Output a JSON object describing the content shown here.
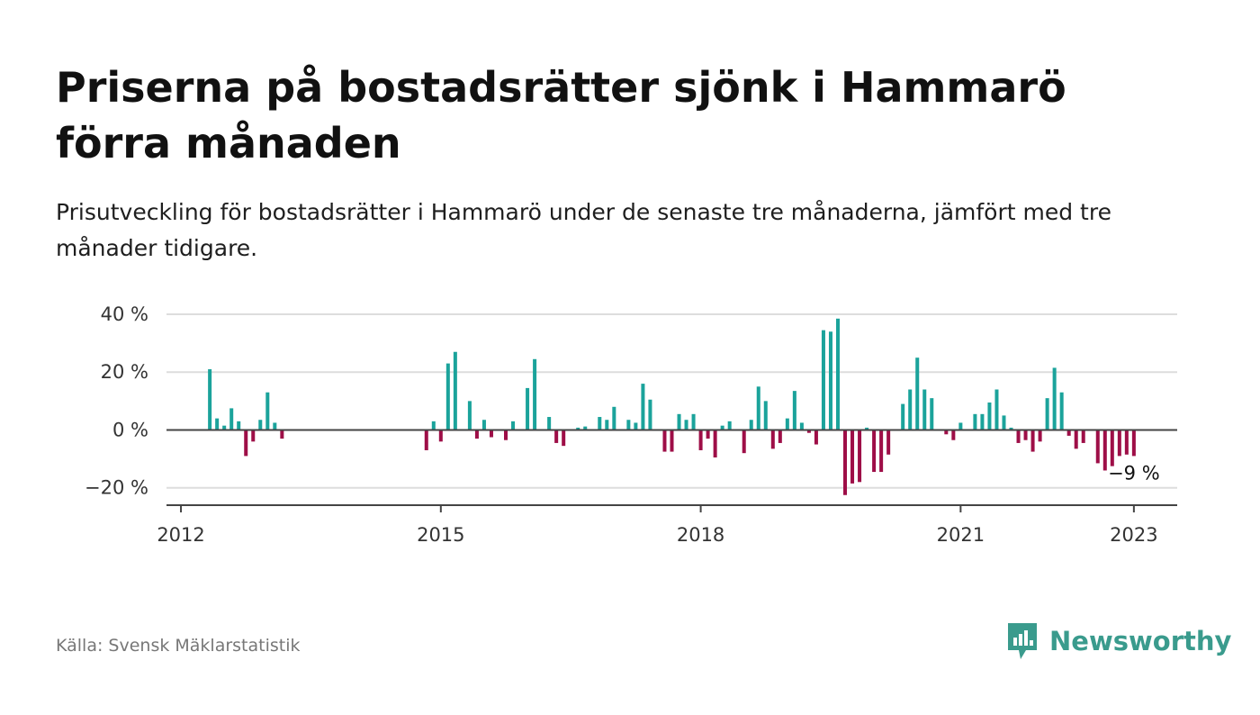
{
  "title": "Priserna på bostadsrätter sjönk i Hammarö förra månaden",
  "subtitle": "Prisutveckling för bostadsrätter i Hammarö under de senaste tre månaderna, jämfört med tre månader tidigare.",
  "source": "Källa: Svensk Mäklarstatistik",
  "brand": "Newsworthy",
  "colors": {
    "positive": "#1ba39b",
    "negative": "#9e0e47",
    "grid": "#dddddd",
    "axis": "#444444",
    "brand": "#3a9b8d"
  },
  "chart_data": {
    "type": "bar",
    "title": "Priserna på bostadsrätter sjönk i Hammarö förra månaden",
    "subtitle": "Prisutveckling för bostadsrätter i Hammarö under de senaste tre månaderna, jämfört med tre månader tidigare.",
    "xlabel": "",
    "ylabel": "",
    "unit": "%",
    "x_ticks": [
      {
        "label": "2012",
        "x": "2012-01"
      },
      {
        "label": "2015",
        "x": "2015-01"
      },
      {
        "label": "2018",
        "x": "2018-01"
      },
      {
        "label": "2021",
        "x": "2021-01"
      },
      {
        "label": "2023",
        "x": "2023-01"
      }
    ],
    "y_ticks": [
      {
        "label": "40 %",
        "value": 40
      },
      {
        "label": "20 %",
        "value": 20
      },
      {
        "label": "0 %",
        "value": 0
      },
      {
        "label": "−20 %",
        "value": -20
      }
    ],
    "xlim": [
      "2011-11",
      "2023-07"
    ],
    "ylim": [
      -26,
      40
    ],
    "grid": true,
    "annotation": {
      "label": "−9 %",
      "x": "2023-01",
      "value": -9
    },
    "points": [
      {
        "x": "2012-05",
        "value": 21
      },
      {
        "x": "2012-06",
        "value": 4
      },
      {
        "x": "2012-07",
        "value": 1.5
      },
      {
        "x": "2012-08",
        "value": 7.5
      },
      {
        "x": "2012-09",
        "value": 3
      },
      {
        "x": "2012-10",
        "value": -9
      },
      {
        "x": "2012-11",
        "value": -4
      },
      {
        "x": "2012-12",
        "value": 3.5
      },
      {
        "x": "2013-01",
        "value": 13
      },
      {
        "x": "2013-02",
        "value": 2.5
      },
      {
        "x": "2013-03",
        "value": -3
      },
      {
        "x": "2014-11",
        "value": -7
      },
      {
        "x": "2014-12",
        "value": 3
      },
      {
        "x": "2015-01",
        "value": -4
      },
      {
        "x": "2015-02",
        "value": 23
      },
      {
        "x": "2015-03",
        "value": 27
      },
      {
        "x": "2015-05",
        "value": 10
      },
      {
        "x": "2015-06",
        "value": -3
      },
      {
        "x": "2015-07",
        "value": 3.5
      },
      {
        "x": "2015-08",
        "value": -2.5
      },
      {
        "x": "2015-10",
        "value": -3.5
      },
      {
        "x": "2015-11",
        "value": 3
      },
      {
        "x": "2016-01",
        "value": 14.5
      },
      {
        "x": "2016-02",
        "value": 24.5
      },
      {
        "x": "2016-04",
        "value": 4.5
      },
      {
        "x": "2016-05",
        "value": -4.5
      },
      {
        "x": "2016-06",
        "value": -5.5
      },
      {
        "x": "2016-08",
        "value": 0.8
      },
      {
        "x": "2016-09",
        "value": 1.2
      },
      {
        "x": "2016-11",
        "value": 4.5
      },
      {
        "x": "2016-12",
        "value": 3.5
      },
      {
        "x": "2017-01",
        "value": 8
      },
      {
        "x": "2017-03",
        "value": 3.5
      },
      {
        "x": "2017-04",
        "value": 2.5
      },
      {
        "x": "2017-05",
        "value": 16
      },
      {
        "x": "2017-06",
        "value": 10.5
      },
      {
        "x": "2017-08",
        "value": -7.5
      },
      {
        "x": "2017-09",
        "value": -7.5
      },
      {
        "x": "2017-10",
        "value": 5.5
      },
      {
        "x": "2017-11",
        "value": 3.5
      },
      {
        "x": "2017-12",
        "value": 5.5
      },
      {
        "x": "2018-01",
        "value": -7
      },
      {
        "x": "2018-02",
        "value": -3
      },
      {
        "x": "2018-03",
        "value": -9.5
      },
      {
        "x": "2018-04",
        "value": 1.5
      },
      {
        "x": "2018-05",
        "value": 3
      },
      {
        "x": "2018-07",
        "value": -8
      },
      {
        "x": "2018-08",
        "value": 3.5
      },
      {
        "x": "2018-09",
        "value": 15
      },
      {
        "x": "2018-10",
        "value": 10
      },
      {
        "x": "2018-11",
        "value": -6.5
      },
      {
        "x": "2018-12",
        "value": -4.5
      },
      {
        "x": "2019-01",
        "value": 4
      },
      {
        "x": "2019-02",
        "value": 13.5
      },
      {
        "x": "2019-03",
        "value": 2.5
      },
      {
        "x": "2019-04",
        "value": -1
      },
      {
        "x": "2019-05",
        "value": -5
      },
      {
        "x": "2019-06",
        "value": 34.5
      },
      {
        "x": "2019-07",
        "value": 34
      },
      {
        "x": "2019-08",
        "value": 38.5
      },
      {
        "x": "2019-09",
        "value": -22.5
      },
      {
        "x": "2019-10",
        "value": -18.5
      },
      {
        "x": "2019-11",
        "value": -18
      },
      {
        "x": "2019-12",
        "value": 0.8
      },
      {
        "x": "2020-01",
        "value": -14.5
      },
      {
        "x": "2020-02",
        "value": -14.5
      },
      {
        "x": "2020-03",
        "value": -8.5
      },
      {
        "x": "2020-05",
        "value": 9
      },
      {
        "x": "2020-06",
        "value": 14
      },
      {
        "x": "2020-07",
        "value": 25
      },
      {
        "x": "2020-08",
        "value": 14
      },
      {
        "x": "2020-09",
        "value": 11
      },
      {
        "x": "2020-11",
        "value": -1.5
      },
      {
        "x": "2020-12",
        "value": -3.5
      },
      {
        "x": "2021-01",
        "value": 2.5
      },
      {
        "x": "2021-03",
        "value": 5.5
      },
      {
        "x": "2021-04",
        "value": 5.5
      },
      {
        "x": "2021-05",
        "value": 9.5
      },
      {
        "x": "2021-06",
        "value": 14
      },
      {
        "x": "2021-07",
        "value": 5
      },
      {
        "x": "2021-08",
        "value": 0.8
      },
      {
        "x": "2021-09",
        "value": -4.5
      },
      {
        "x": "2021-10",
        "value": -3.5
      },
      {
        "x": "2021-11",
        "value": -7.5
      },
      {
        "x": "2021-12",
        "value": -4
      },
      {
        "x": "2022-01",
        "value": 11
      },
      {
        "x": "2022-02",
        "value": 21.5
      },
      {
        "x": "2022-03",
        "value": 13
      },
      {
        "x": "2022-04",
        "value": -2
      },
      {
        "x": "2022-05",
        "value": -6.5
      },
      {
        "x": "2022-06",
        "value": -4.5
      },
      {
        "x": "2022-08",
        "value": -11.5
      },
      {
        "x": "2022-09",
        "value": -14
      },
      {
        "x": "2022-10",
        "value": -12.5
      },
      {
        "x": "2022-11",
        "value": -9
      },
      {
        "x": "2022-12",
        "value": -8.5
      },
      {
        "x": "2023-01",
        "value": -9
      }
    ]
  }
}
